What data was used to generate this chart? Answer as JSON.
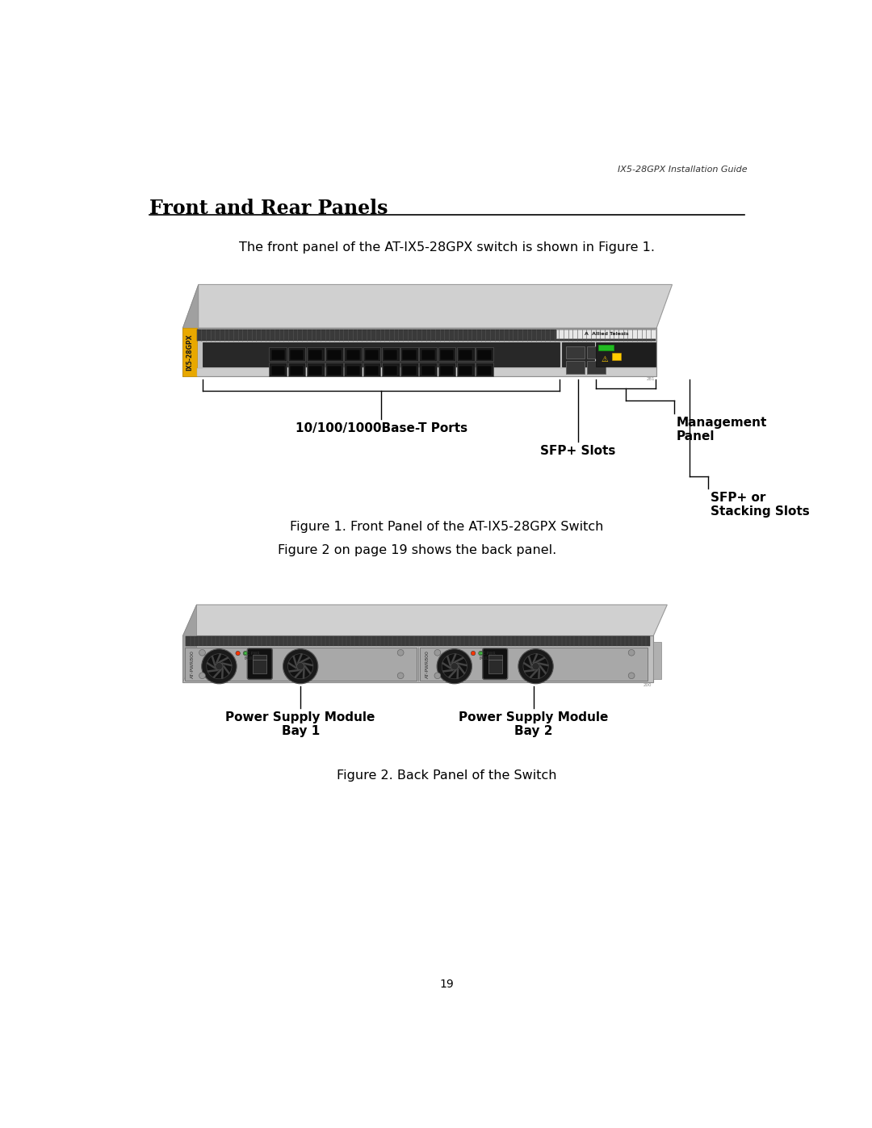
{
  "page_header": "IX5-28GPX Installation Guide",
  "section_title": "Front and Rear Panels",
  "intro_text": "The front panel of the AT-IX5-28GPX switch is shown in Figure 1.",
  "figure1_caption": "Figure 1. Front Panel of the AT-IX5-28GPX Switch",
  "figure2_intro": "Figure 2 on page 19 shows the back panel.",
  "figure2_caption": "Figure 2. Back Panel of the Switch",
  "label_ports": "10/100/1000Base-T Ports",
  "label_mgmt": "Management\nPanel",
  "label_sfp": "SFP+ Slots",
  "label_stacking": "SFP+ or\nStacking Slots",
  "label_psu1": "Power Supply Module\nBay 1",
  "label_psu2": "Power Supply Module\nBay 2",
  "page_number": "19",
  "bg_color": "#ffffff",
  "text_color": "#000000",
  "title_font_size": 17,
  "header_font_size": 8,
  "body_font_size": 11.5,
  "caption_font_size": 11.5,
  "label_font_size": 11
}
